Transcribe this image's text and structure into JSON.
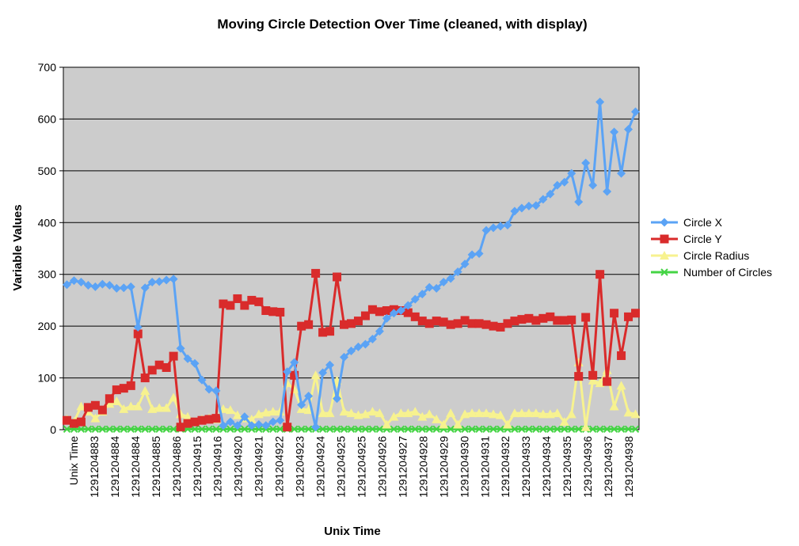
{
  "chart_data": {
    "type": "line",
    "title": "Moving Circle Detection Over Time (cleaned, with display)",
    "xlabel": "Unix Time",
    "ylabel": "Variable Values",
    "ylim": [
      0,
      700
    ],
    "yticks": [
      0,
      100,
      200,
      300,
      400,
      500,
      600,
      700
    ],
    "grid": true,
    "legend_position": "right",
    "x_tick_labels": [
      "Unix Time",
      "1291204883",
      "1291204884",
      "1291204884",
      "1291204885",
      "1291204886",
      "1291204915",
      "1291204916",
      "1291204920",
      "1291204921",
      "1291204922",
      "1291204923",
      "1291204924",
      "1291204925",
      "1291204925",
      "1291204926",
      "1291204927",
      "1291204928",
      "1291204929",
      "1291204930",
      "1291204931",
      "1291204932",
      "1291204933",
      "1291204934",
      "1291204935",
      "1291204936",
      "1291204937",
      "1291204938"
    ],
    "series": [
      {
        "name": "Circle X",
        "color": "#5ba3f5",
        "marker": "diamond",
        "values": [
          280,
          288,
          285,
          279,
          276,
          281,
          279,
          273,
          274,
          276,
          198,
          274,
          285,
          286,
          289,
          291,
          157,
          137,
          128,
          96,
          78,
          75,
          8,
          15,
          8,
          25,
          8,
          10,
          8,
          15,
          18,
          112,
          130,
          48,
          65,
          5,
          110,
          125,
          60,
          140,
          152,
          160,
          165,
          175,
          190,
          215,
          225,
          230,
          240,
          252,
          262,
          275,
          273,
          285,
          292,
          305,
          320,
          338,
          340,
          385,
          390,
          393,
          395,
          422,
          428,
          432,
          433,
          445,
          455,
          472,
          478,
          495,
          440,
          515,
          472,
          633,
          460,
          575,
          495,
          580,
          614
        ]
      },
      {
        "name": "Circle Y",
        "color": "#d92b2b",
        "marker": "square",
        "values": [
          18,
          12,
          15,
          43,
          47,
          38,
          60,
          77,
          80,
          85,
          185,
          100,
          115,
          125,
          120,
          142,
          5,
          12,
          15,
          18,
          20,
          22,
          243,
          240,
          253,
          240,
          250,
          247,
          230,
          228,
          227,
          5,
          105,
          200,
          203,
          302,
          188,
          190,
          295,
          203,
          205,
          210,
          220,
          232,
          228,
          230,
          232,
          230,
          226,
          218,
          210,
          205,
          210,
          208,
          203,
          205,
          211,
          205,
          205,
          203,
          200,
          198,
          205,
          210,
          213,
          215,
          211,
          215,
          218,
          211,
          211,
          212,
          103,
          217,
          105,
          300,
          93,
          225,
          143,
          218,
          225
        ]
      },
      {
        "name": "Circle Radius",
        "color": "#f7f28f",
        "marker": "triangle",
        "values": [
          20,
          15,
          45,
          35,
          22,
          35,
          50,
          55,
          40,
          45,
          45,
          75,
          40,
          42,
          42,
          62,
          30,
          25,
          15,
          20,
          22,
          20,
          40,
          38,
          28,
          22,
          20,
          30,
          33,
          35,
          35,
          90,
          78,
          40,
          38,
          105,
          32,
          32,
          95,
          35,
          32,
          28,
          30,
          35,
          32,
          10,
          25,
          32,
          32,
          35,
          25,
          30,
          20,
          10,
          32,
          10,
          30,
          32,
          32,
          32,
          30,
          28,
          10,
          32,
          32,
          32,
          32,
          30,
          30,
          32,
          15,
          30,
          130,
          5,
          95,
          90,
          115,
          45,
          85,
          33,
          30
        ]
      },
      {
        "name": "Number of Circles",
        "color": "#44d444",
        "marker": "x",
        "values": [
          1,
          1,
          1,
          1,
          1,
          1,
          1,
          1,
          1,
          1,
          1,
          1,
          1,
          1,
          1,
          1,
          1,
          1,
          1,
          1,
          1,
          1,
          1,
          1,
          1,
          1,
          1,
          1,
          1,
          1,
          1,
          1,
          1,
          1,
          1,
          1,
          1,
          1,
          1,
          1,
          1,
          1,
          1,
          1,
          1,
          1,
          1,
          1,
          1,
          1,
          1,
          1,
          1,
          1,
          1,
          1,
          1,
          1,
          1,
          1,
          1,
          1,
          1,
          1,
          1,
          1,
          1,
          1,
          1,
          1,
          1,
          1,
          1,
          1,
          1,
          1,
          1,
          1,
          1,
          1,
          1
        ]
      }
    ]
  }
}
